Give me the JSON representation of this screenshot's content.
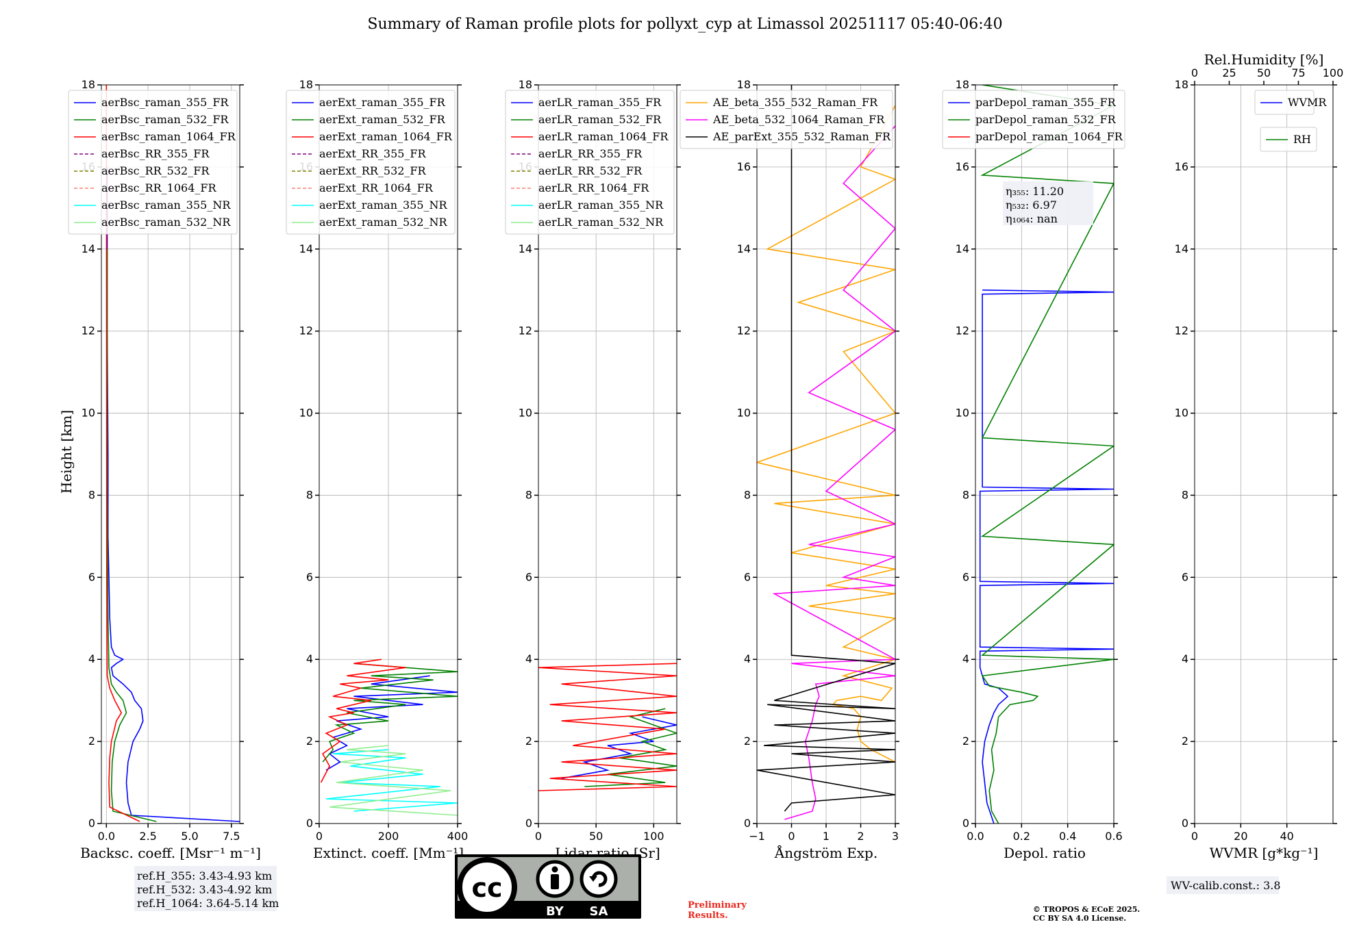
{
  "title": "Summary of Raman profile plots for pollyxt_cyp at Limassol 20251117 05:40-06:40",
  "y_label": "Height [km]",
  "y_ticks": [
    "0",
    "2",
    "4",
    "6",
    "8",
    "10",
    "12",
    "14",
    "16",
    "18"
  ],
  "colors": {
    "blue": "#0000ff",
    "green": "#008000",
    "red": "#ff0000",
    "purple": "#800080",
    "olive": "#808000",
    "salmon": "#fa8072",
    "cyan": "#00ffff",
    "lightgreen": "#90ee90",
    "orange": "#ffa500",
    "magenta": "#ff00ff",
    "black": "#000000"
  },
  "chart_data": [
    {
      "type": "line",
      "id": "bsc",
      "xlabel": "Backsc. coeff. [Msr⁻¹ m⁻¹]",
      "xlim": [
        -0.3,
        8.0
      ],
      "xticks": [
        0,
        2.5,
        5.0,
        7.5
      ],
      "xtick_labels": [
        "0.0",
        "2.5",
        "5.0",
        "7.5"
      ],
      "ylim": [
        0,
        18
      ],
      "legend": [
        {
          "label": "aerBsc_raman_355_FR",
          "color": "blue",
          "dash": false
        },
        {
          "label": "aerBsc_raman_532_FR",
          "color": "green",
          "dash": false
        },
        {
          "label": "aerBsc_raman_1064_FR",
          "color": "red",
          "dash": false
        },
        {
          "label": "aerBsc_RR_355_FR",
          "color": "purple",
          "dash": true
        },
        {
          "label": "aerBsc_RR_532_FR",
          "color": "olive",
          "dash": true
        },
        {
          "label": "aerBsc_RR_1064_FR",
          "color": "salmon",
          "dash": true
        },
        {
          "label": "aerBsc_raman_355_NR",
          "color": "cyan",
          "dash": false
        },
        {
          "label": "aerBsc_raman_532_NR",
          "color": "lightgreen",
          "dash": false
        }
      ],
      "series": [
        {
          "name": "aerBsc_raman_355_FR",
          "color": "blue",
          "x": [
            8.0,
            1.5,
            1.3,
            1.2,
            1.3,
            1.6,
            2.0,
            2.2,
            2.1,
            1.7,
            1.5,
            1.0,
            0.4,
            0.3,
            0.6,
            1.0,
            0.5,
            0.3,
            0.2,
            0.15,
            0.1,
            0.1,
            0.05,
            0.05
          ],
          "y": [
            0.05,
            0.2,
            0.5,
            1.0,
            1.5,
            2.0,
            2.3,
            2.5,
            2.8,
            3.0,
            3.2,
            3.4,
            3.6,
            3.8,
            3.9,
            4.0,
            4.1,
            4.3,
            5.0,
            6.0,
            7.0,
            9.0,
            12.0,
            16.0
          ]
        },
        {
          "name": "aerBsc_raman_532_FR",
          "color": "green",
          "x": [
            3.0,
            0.4,
            0.3,
            0.35,
            0.5,
            0.8,
            1.2,
            1.0,
            0.6,
            0.3,
            0.15,
            0.1,
            0.05,
            0.05
          ],
          "y": [
            0.05,
            0.3,
            0.8,
            1.5,
            2.0,
            2.4,
            2.7,
            3.0,
            3.2,
            3.4,
            3.8,
            5.0,
            8.0,
            14.0
          ]
        },
        {
          "name": "aerBsc_raman_1064_FR",
          "color": "red",
          "x": [
            2.0,
            0.2,
            0.15,
            0.2,
            0.3,
            0.6,
            0.9,
            0.5,
            0.2,
            0.05,
            0.02,
            0.0
          ],
          "y": [
            0.05,
            0.4,
            1.0,
            1.6,
            2.0,
            2.5,
            2.7,
            3.0,
            3.3,
            3.6,
            6.0,
            18.0
          ]
        }
      ]
    },
    {
      "type": "line",
      "id": "ext",
      "xlabel": "Extinct. coeff. [Mm⁻¹]",
      "xlim": [
        0,
        400
      ],
      "xticks": [
        0,
        200,
        400
      ],
      "xtick_labels": [
        "0",
        "200",
        "400"
      ],
      "ylim": [
        0,
        18
      ],
      "legend": [
        {
          "label": "aerExt_raman_355_FR",
          "color": "blue",
          "dash": false
        },
        {
          "label": "aerExt_raman_532_FR",
          "color": "green",
          "dash": false
        },
        {
          "label": "aerExt_raman_1064_FR",
          "color": "red",
          "dash": false
        },
        {
          "label": "aerExt_RR_355_FR",
          "color": "purple",
          "dash": true
        },
        {
          "label": "aerExt_RR_532_FR",
          "color": "olive",
          "dash": true
        },
        {
          "label": "aerExt_RR_1064_FR",
          "color": "salmon",
          "dash": true
        },
        {
          "label": "aerExt_raman_355_NR",
          "color": "cyan",
          "dash": false
        },
        {
          "label": "aerExt_raman_532_NR",
          "color": "lightgreen",
          "dash": false
        }
      ],
      "series": [
        {
          "name": "aerExt_raman_355_NR",
          "color": "cyan",
          "x": [
            100,
            400,
            20,
            350,
            60,
            300,
            90,
            250,
            40,
            200
          ],
          "y": [
            0.3,
            0.5,
            0.6,
            0.9,
            1.0,
            1.2,
            1.4,
            1.6,
            1.7,
            1.8
          ]
        },
        {
          "name": "aerExt_raman_532_NR",
          "color": "lightgreen",
          "x": [
            400,
            30,
            380,
            50,
            300,
            60,
            250,
            80,
            200
          ],
          "y": [
            0.2,
            0.4,
            0.8,
            1.0,
            1.3,
            1.5,
            1.7,
            1.8,
            1.9
          ]
        },
        {
          "name": "aerExt_raman_355_FR",
          "color": "blue",
          "x": [
            20,
            60,
            30,
            80,
            40,
            120,
            50,
            200,
            80,
            300,
            100,
            400,
            150,
            320
          ],
          "y": [
            1.3,
            1.5,
            1.7,
            1.9,
            2.1,
            2.3,
            2.5,
            2.6,
            2.8,
            2.9,
            3.1,
            3.2,
            3.4,
            3.6
          ]
        },
        {
          "name": "aerExt_raman_532_FR",
          "color": "green",
          "x": [
            10,
            40,
            30,
            100,
            50,
            200,
            80,
            250,
            100,
            400,
            120,
            330,
            150,
            400,
            100
          ],
          "y": [
            1.5,
            1.8,
            2.0,
            2.2,
            2.4,
            2.5,
            2.7,
            2.9,
            3.0,
            3.1,
            3.3,
            3.5,
            3.6,
            3.7,
            3.9
          ]
        },
        {
          "name": "aerExt_raman_1064_FR",
          "color": "red",
          "x": [
            5,
            30,
            10,
            60,
            20,
            80,
            30,
            100,
            50,
            150,
            40,
            120,
            60,
            200,
            80,
            250,
            100,
            180
          ],
          "y": [
            1.0,
            1.4,
            1.7,
            2.0,
            2.2,
            2.4,
            2.6,
            2.7,
            2.8,
            3.0,
            3.1,
            3.3,
            3.4,
            3.5,
            3.6,
            3.8,
            3.9,
            4.0
          ]
        }
      ]
    },
    {
      "type": "line",
      "id": "lr",
      "xlabel": "Lidar ratio [Sr]",
      "xlim": [
        0,
        120
      ],
      "xticks": [
        0,
        50,
        100
      ],
      "xtick_labels": [
        "0",
        "50",
        "100"
      ],
      "ylim": [
        0,
        18
      ],
      "legend": [
        {
          "label": "aerLR_raman_355_FR",
          "color": "blue",
          "dash": false
        },
        {
          "label": "aerLR_raman_532_FR",
          "color": "green",
          "dash": false
        },
        {
          "label": "aerLR_raman_1064_FR",
          "color": "red",
          "dash": false
        },
        {
          "label": "aerLR_RR_355_FR",
          "color": "purple",
          "dash": true
        },
        {
          "label": "aerLR_RR_532_FR",
          "color": "olive",
          "dash": true
        },
        {
          "label": "aerLR_RR_1064_FR",
          "color": "salmon",
          "dash": true
        },
        {
          "label": "aerLR_raman_355_NR",
          "color": "cyan",
          "dash": false
        },
        {
          "label": "aerLR_raman_532_NR",
          "color": "lightgreen",
          "dash": false
        }
      ],
      "series": [
        {
          "name": "aerLR_raman_355_FR",
          "color": "blue",
          "x": [
            20,
            60,
            40,
            80,
            60,
            100,
            80,
            120,
            90
          ],
          "y": [
            1.1,
            1.3,
            1.5,
            1.7,
            1.9,
            2.0,
            2.2,
            2.4,
            2.6
          ]
        },
        {
          "name": "aerLR_raman_532_FR",
          "color": "green",
          "x": [
            40,
            110,
            60,
            120,
            70,
            110,
            90,
            120,
            100,
            80,
            110
          ],
          "y": [
            0.9,
            1.0,
            1.2,
            1.4,
            1.6,
            1.8,
            2.0,
            2.2,
            2.4,
            2.6,
            2.8
          ]
        },
        {
          "name": "aerLR_raman_1064_FR",
          "color": "red",
          "x": [
            0,
            120,
            10,
            120,
            20,
            120,
            30,
            110,
            20,
            120,
            10,
            120,
            20,
            120,
            0,
            120
          ],
          "y": [
            0.8,
            0.9,
            1.1,
            1.3,
            1.5,
            1.7,
            1.9,
            2.3,
            2.5,
            2.7,
            2.9,
            3.1,
            3.4,
            3.6,
            3.8,
            3.9
          ]
        }
      ]
    },
    {
      "type": "line",
      "id": "ae",
      "xlabel": "Ångström Exp.",
      "xlim": [
        -1,
        3
      ],
      "xticks": [
        -1,
        0,
        1,
        2,
        3
      ],
      "xtick_labels": [
        "−1",
        "0",
        "1",
        "2",
        "3"
      ],
      "ylim": [
        0,
        18
      ],
      "legend": [
        {
          "label": "AE_beta_355_532_Raman_FR",
          "color": "orange",
          "dash": false
        },
        {
          "label": "AE_beta_532_1064_Raman_FR",
          "color": "magenta",
          "dash": false
        },
        {
          "label": "AE_parExt_355_532_Raman_FR",
          "color": "black",
          "dash": false
        }
      ],
      "series": [
        {
          "name": "AE_beta_355_532_Raman_FR",
          "color": "orange",
          "x": [
            3.0,
            2.3,
            2.0,
            1.9,
            2.0,
            1.8,
            1.2,
            1.3,
            2.0,
            2.6,
            2.9,
            1.5,
            3.0,
            1.5,
            3.0,
            0.5,
            3.0,
            1.0,
            3.0,
            0.0,
            3.0,
            -0.5,
            3.0,
            -1.0,
            3.0,
            1.5,
            3.0,
            0.2,
            3.0,
            -0.7,
            3.0,
            2.0,
            3.0
          ],
          "y": [
            1.5,
            1.8,
            2.0,
            2.3,
            2.6,
            2.8,
            2.9,
            3.0,
            3.1,
            3.0,
            3.3,
            3.6,
            4.0,
            4.3,
            5.0,
            5.3,
            5.6,
            5.8,
            6.2,
            6.6,
            7.3,
            7.8,
            8.0,
            8.8,
            10.0,
            11.5,
            12.0,
            12.7,
            13.5,
            14.0,
            15.7,
            16.0,
            17.5
          ]
        },
        {
          "name": "AE_beta_532_1064_Raman_FR",
          "color": "magenta",
          "x": [
            -0.2,
            0.6,
            0.7,
            0.6,
            0.5,
            0.4,
            0.6,
            0.7,
            0.8,
            0.7,
            3.0,
            0.0,
            3.0,
            -0.5,
            3.0,
            1.5,
            3.0,
            0.5,
            3.0,
            1.0,
            3.0,
            0.5,
            3.0,
            1.5,
            3.0,
            1.5,
            3.0
          ],
          "y": [
            0.1,
            0.3,
            0.6,
            1.0,
            1.6,
            2.0,
            2.5,
            2.9,
            3.1,
            3.4,
            3.6,
            3.9,
            4.0,
            5.6,
            5.8,
            6.0,
            6.5,
            6.8,
            7.3,
            8.1,
            9.6,
            10.5,
            12.0,
            13.0,
            14.5,
            15.6,
            17.0
          ]
        },
        {
          "name": "AE_parExt_355_532_Raman_FR",
          "color": "black",
          "x": [
            -0.2,
            0.0,
            3.0,
            -1.0,
            3.0,
            0.0,
            3.0,
            -0.8,
            3.0,
            -0.5,
            3.0,
            -0.7,
            3.0,
            -0.5,
            3.0,
            0.0,
            0.0
          ],
          "y": [
            0.3,
            0.5,
            0.7,
            1.3,
            1.5,
            1.7,
            1.8,
            1.9,
            2.2,
            2.4,
            2.5,
            2.9,
            2.8,
            3.0,
            3.9,
            4.1,
            18.0
          ]
        }
      ]
    },
    {
      "type": "line",
      "id": "depol",
      "xlabel": "Depol. ratio",
      "xlim": [
        0,
        0.6
      ],
      "xticks": [
        0,
        0.2,
        0.4,
        0.6
      ],
      "xtick_labels": [
        "0.0",
        "0.2",
        "0.4",
        "0.6"
      ],
      "ylim": [
        0,
        18
      ],
      "legend": [
        {
          "label": "parDepol_raman_355_FR",
          "color": "blue",
          "dash": false
        },
        {
          "label": "parDepol_raman_532_FR",
          "color": "green",
          "dash": false
        },
        {
          "label": "parDepol_raman_1064_FR",
          "color": "red",
          "dash": false
        }
      ],
      "annotation": {
        "lines": [
          "η₃₅₅: 11.20",
          "η₅₃₂: 6.97",
          "η₁₀₆₄: nan"
        ]
      },
      "series": [
        {
          "name": "parDepol_raman_355_FR",
          "color": "blue",
          "x": [
            0.08,
            0.05,
            0.04,
            0.03,
            0.04,
            0.06,
            0.08,
            0.1,
            0.14,
            0.12,
            0.1,
            0.04,
            0.02,
            0.02,
            0.6,
            0.02,
            0.02,
            0.6,
            0.02,
            0.02,
            0.6,
            0.03,
            0.03,
            0.6,
            0.03
          ],
          "y": [
            0.0,
            0.5,
            1.0,
            1.5,
            2.0,
            2.4,
            2.7,
            2.9,
            3.1,
            3.2,
            3.3,
            3.4,
            3.8,
            4.2,
            4.25,
            4.3,
            5.8,
            5.85,
            5.9,
            8.1,
            8.15,
            8.2,
            12.9,
            12.95,
            13.0
          ]
        },
        {
          "name": "parDepol_raman_532_FR",
          "color": "green",
          "x": [
            0.1,
            0.07,
            0.06,
            0.08,
            0.07,
            0.09,
            0.1,
            0.15,
            0.25,
            0.27,
            0.2,
            0.06,
            0.03,
            0.6,
            0.03,
            0.6,
            0.03,
            0.6,
            0.03,
            0.6,
            0.03,
            0.6,
            0.03
          ],
          "y": [
            0.0,
            0.3,
            0.8,
            1.3,
            1.8,
            2.2,
            2.6,
            2.9,
            3.0,
            3.1,
            3.2,
            3.35,
            3.6,
            4.0,
            4.1,
            6.8,
            7.0,
            9.2,
            9.4,
            15.6,
            15.8,
            17.5,
            18.0
          ]
        }
      ]
    },
    {
      "type": "line",
      "id": "wv",
      "xlabel": "WVMR [g*kg⁻¹]",
      "xlim": [
        0,
        60
      ],
      "xticks": [
        0,
        20,
        40
      ],
      "xtick_labels": [
        "0",
        "20",
        "40"
      ],
      "top_xlabel": "Rel.Humidity [%]",
      "top_xlim": [
        0,
        100
      ],
      "top_xticks": [
        0,
        25,
        50,
        75,
        100
      ],
      "top_xtick_labels": [
        "0",
        "25",
        "50",
        "75",
        "100"
      ],
      "ylim": [
        0,
        18
      ],
      "legend": [
        {
          "label": "WVMR",
          "color": "blue",
          "dash": false
        }
      ],
      "legend2": [
        {
          "label": "RH",
          "color": "green",
          "dash": false
        }
      ],
      "series": []
    }
  ],
  "notes": {
    "ref_heights": [
      "ref.H_355: 3.43-4.93 km",
      "ref.H_532: 3.43-4.92 km",
      "ref.H_1064: 3.64-5.14 km"
    ],
    "license_by": "BY",
    "license_sa": "SA",
    "license_cc": "cc",
    "preliminary": [
      "Preliminary",
      "Results."
    ],
    "copyright": [
      "© TROPOS & ECoE 2025.",
      "CC BY SA 4.0 License."
    ],
    "wv_calib": "WV-calib.const.: 3.8"
  }
}
